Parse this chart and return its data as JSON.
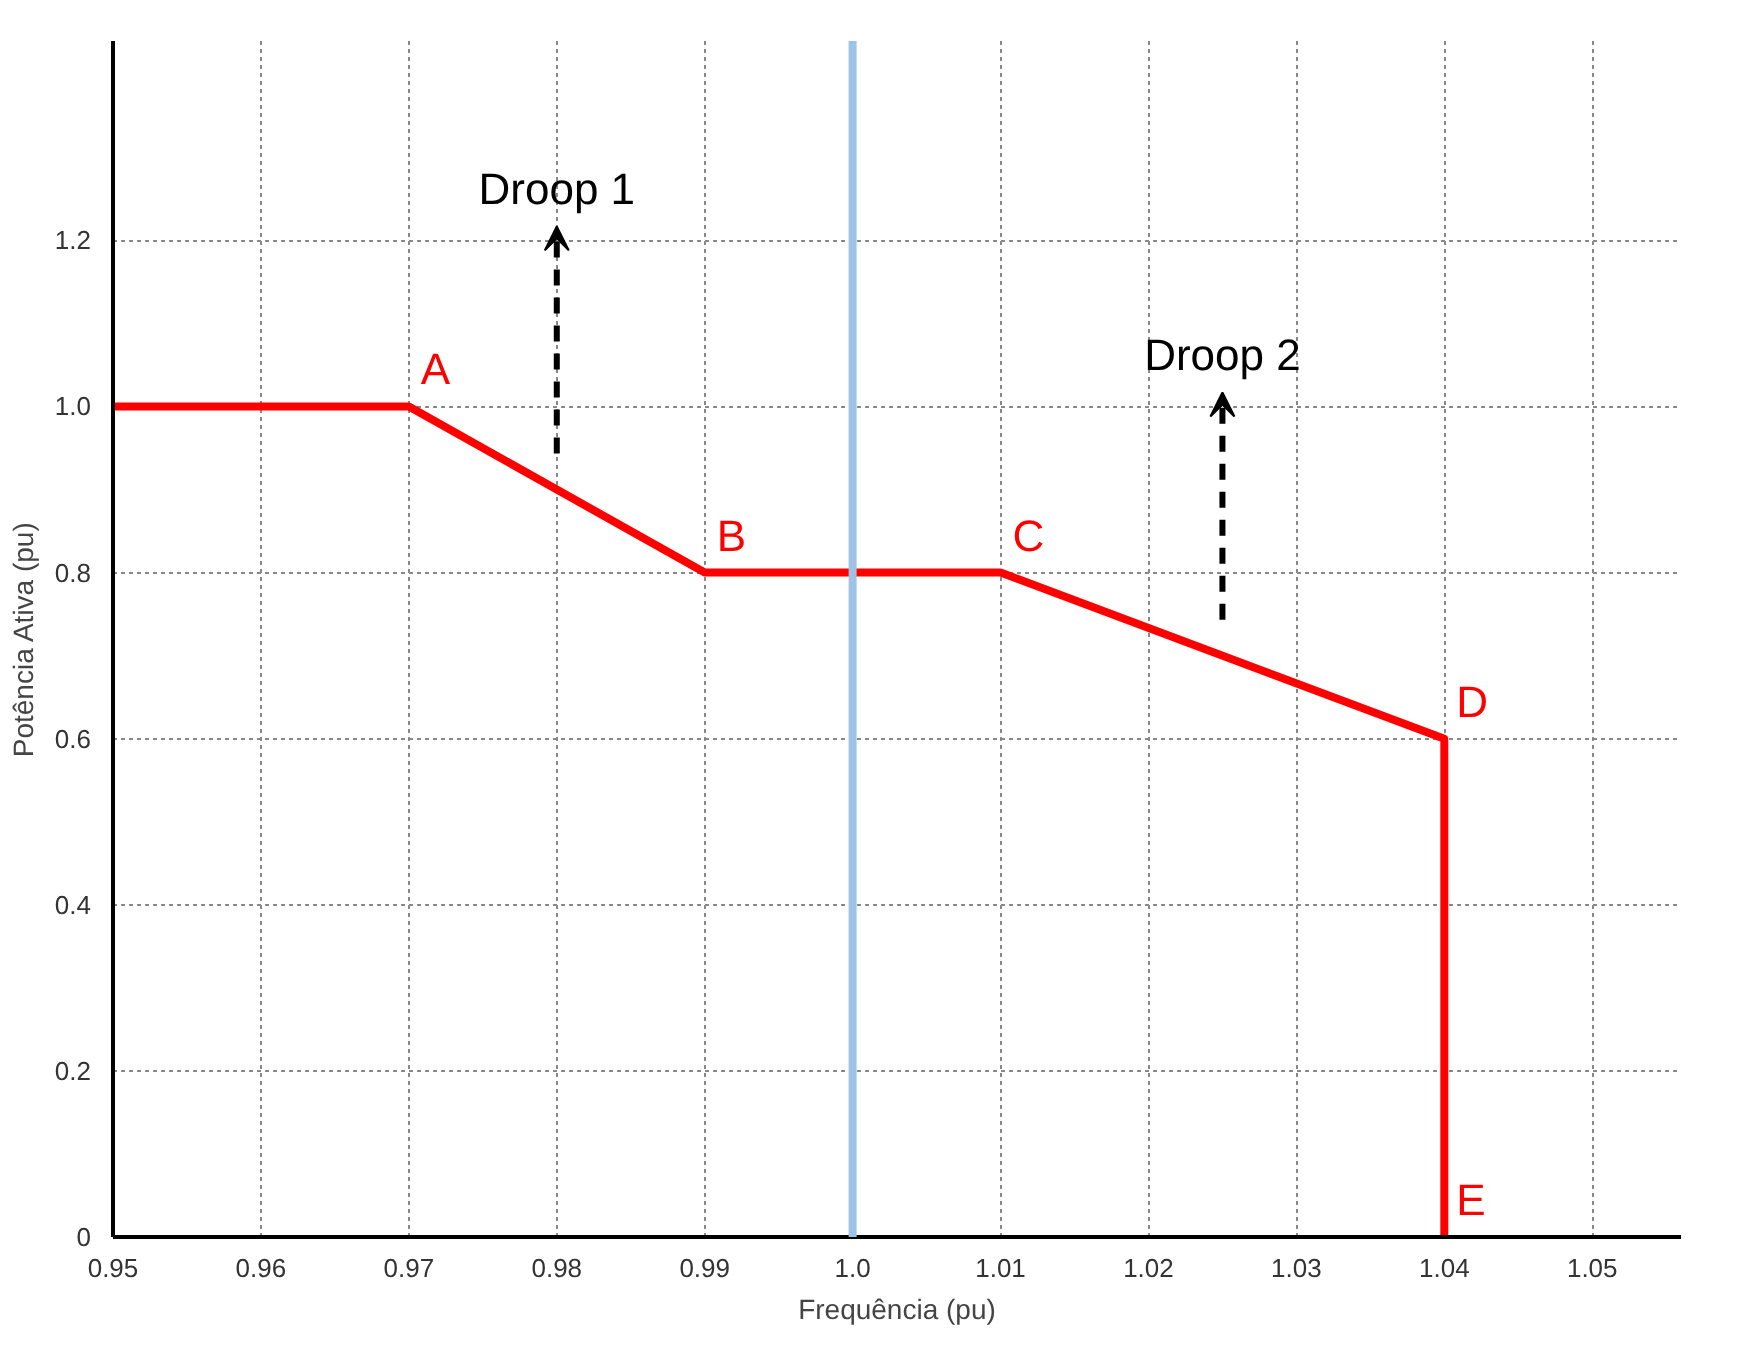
{
  "chart_data": {
    "type": "line",
    "xlabel": "Frequência (pu)",
    "ylabel": "Potência Ativa (pu)",
    "x": [
      0.95,
      0.97,
      0.99,
      1.01,
      1.04,
      1.04
    ],
    "series": [
      {
        "color": "#ff0000",
        "values": [
          1.0,
          1.0,
          0.8,
          0.8,
          0.6,
          0
        ]
      }
    ],
    "xlim": [
      0.95,
      1.056
    ],
    "ylim": [
      0,
      1.44
    ],
    "xticks": [
      0.95,
      0.96,
      0.97,
      0.98,
      0.99,
      {
        "value": 1.0,
        "label": "1.0"
      },
      1.01,
      1.02,
      1.03,
      1.04,
      1.05
    ],
    "yticks": [
      0,
      0.2,
      0.4,
      0.6,
      0.8,
      {
        "value": 1.0,
        "label": "1.0"
      },
      1.2
    ],
    "ref_lines": [
      {
        "axis": "x",
        "value": 1.0,
        "label": null,
        "color": "#9dc3e6"
      }
    ],
    "annotations": [
      {
        "text": "A",
        "x": 0.97,
        "y": 1.0
      },
      {
        "text": "B",
        "x": 0.99,
        "y": 0.8
      },
      {
        "text": "C",
        "x": 1.01,
        "y": 0.8
      },
      {
        "text": "D",
        "x": 1.04,
        "y": 0.6
      },
      {
        "text": "E",
        "x": 1.04,
        "y": 0
      },
      "Droop 1",
      "Droop 2"
    ],
    "grid": true,
    "marker": "none",
    "line_style": "solid"
  }
}
